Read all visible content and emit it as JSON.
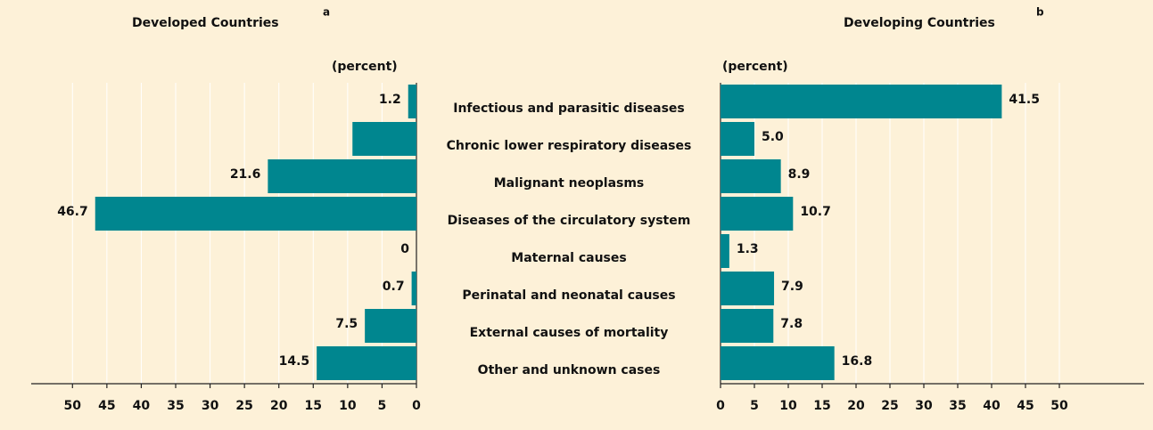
{
  "chart_data": [
    {
      "type": "hbar",
      "title": "Developed Countries",
      "title_note": "a",
      "xlabel": "(percent)",
      "categories": [
        "Infectious and parasitic diseases",
        "Chronic lower respiratory diseases",
        "Malignant neoplasms",
        "Diseases of the circulatory system",
        "Maternal causes",
        "Perinatal and neonatal causes",
        "External causes of mortality",
        "Other and unknown cases"
      ],
      "values": [
        1.2,
        9.3,
        21.6,
        46.7,
        0,
        0.7,
        7.5,
        14.5
      ],
      "value_labels": [
        "1.2",
        null,
        "21.6",
        "46.7",
        "0",
        "0.7",
        "7.5",
        "14.5"
      ],
      "color": "#00868f",
      "direction": "left",
      "xlim": [
        0,
        56
      ],
      "xticks": [
        0,
        5,
        10,
        15,
        20,
        25,
        30,
        35,
        40,
        45,
        50
      ],
      "grid": true
    },
    {
      "type": "hbar",
      "title": "Developing Countries",
      "title_note": "b",
      "xlabel": "(percent)",
      "values": [
        41.5,
        5.0,
        8.9,
        10.7,
        1.3,
        7.9,
        7.8,
        16.8
      ],
      "value_labels": [
        "41.5",
        "5.0",
        "8.9",
        "10.7",
        "1.3",
        "7.9",
        "7.8",
        "16.8"
      ],
      "color": "#00868f",
      "direction": "right",
      "xlim": [
        0,
        62.5
      ],
      "xticks": [
        0,
        5,
        10,
        15,
        20,
        25,
        30,
        35,
        40,
        45,
        50
      ],
      "grid": true
    }
  ]
}
